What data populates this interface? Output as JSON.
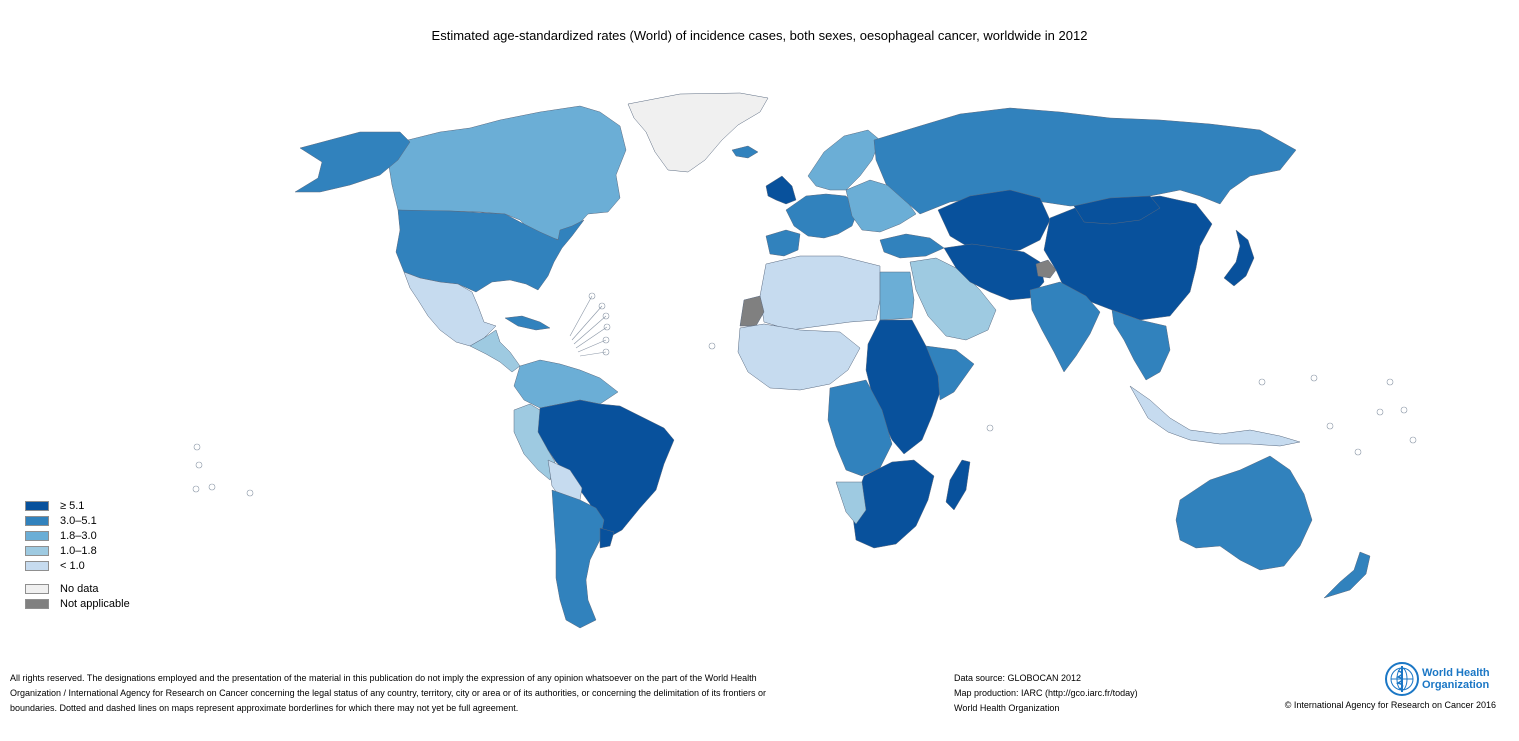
{
  "title": "Estimated age-standardized rates (World) of incidence cases, both sexes, oesophageal cancer, worldwide in 2012",
  "legend": {
    "items": [
      {
        "label": "≥ 5.1",
        "color": "#08519c"
      },
      {
        "label": "3.0–5.1",
        "color": "#3182bd"
      },
      {
        "label": "1.8–3.0",
        "color": "#6baed6"
      },
      {
        "label": "1.0–1.8",
        "color": "#9ecae1"
      },
      {
        "label": "< 1.0",
        "color": "#c6dbef"
      }
    ],
    "special": [
      {
        "label": "No data",
        "color": "#f0f0f0"
      },
      {
        "label": "Not applicable",
        "color": "#808080"
      }
    ]
  },
  "regions": [
    {
      "id": "greenland",
      "cls": "nodata"
    },
    {
      "id": "canada",
      "cls": "c2"
    },
    {
      "id": "alaska",
      "cls": "c1"
    },
    {
      "id": "usa",
      "cls": "c1"
    },
    {
      "id": "mexico",
      "cls": "c4"
    },
    {
      "id": "central-america",
      "cls": "c3"
    },
    {
      "id": "cuba",
      "cls": "c1"
    },
    {
      "id": "colombia-venezuela",
      "cls": "c2"
    },
    {
      "id": "peru-ecuador",
      "cls": "c3"
    },
    {
      "id": "brazil",
      "cls": "c0"
    },
    {
      "id": "bolivia",
      "cls": "c4"
    },
    {
      "id": "argentina-chile",
      "cls": "c1"
    },
    {
      "id": "uruguay",
      "cls": "c0"
    },
    {
      "id": "iceland",
      "cls": "c1"
    },
    {
      "id": "uk-ireland",
      "cls": "c0"
    },
    {
      "id": "scandinavia",
      "cls": "c2"
    },
    {
      "id": "western-europe",
      "cls": "c1"
    },
    {
      "id": "eastern-europe",
      "cls": "c2"
    },
    {
      "id": "iberia",
      "cls": "c1"
    },
    {
      "id": "russia",
      "cls": "c1"
    },
    {
      "id": "central-asia",
      "cls": "c0"
    },
    {
      "id": "china",
      "cls": "c0"
    },
    {
      "id": "mongolia",
      "cls": "c0"
    },
    {
      "id": "japan",
      "cls": "c0"
    },
    {
      "id": "turkey",
      "cls": "c1"
    },
    {
      "id": "middle-east",
      "cls": "c3"
    },
    {
      "id": "iran",
      "cls": "c0"
    },
    {
      "id": "india",
      "cls": "c1"
    },
    {
      "id": "kashmir",
      "cls": "na"
    },
    {
      "id": "southeast-asia",
      "cls": "c1"
    },
    {
      "id": "indonesia",
      "cls": "c4"
    },
    {
      "id": "australia",
      "cls": "c1"
    },
    {
      "id": "new-zealand",
      "cls": "c1"
    },
    {
      "id": "north-africa",
      "cls": "c4"
    },
    {
      "id": "egypt",
      "cls": "c2"
    },
    {
      "id": "western-sahara",
      "cls": "na"
    },
    {
      "id": "west-africa",
      "cls": "c4"
    },
    {
      "id": "sudan-east-africa",
      "cls": "c0"
    },
    {
      "id": "horn-of-africa",
      "cls": "c1"
    },
    {
      "id": "central-africa",
      "cls": "c1"
    },
    {
      "id": "southern-africa",
      "cls": "c0"
    },
    {
      "id": "namibia",
      "cls": "c3"
    },
    {
      "id": "madagascar",
      "cls": "c0"
    }
  ],
  "footer": {
    "disclaimer_1": "All rights reserved. The designations employed and the presentation of the material in this publication do not imply the expression of any opinion whatsoever on the part of the World Health",
    "disclaimer_2": "Organization / International Agency for Research on Cancer concerning the legal status of any country, territory, city or area or of its authorities, or concerning the delimitation of its frontiers or",
    "disclaimer_3": "boundaries. Dotted and dashed lines on maps represent approximate borderlines for which there may not yet be full agreement.",
    "data_source": "Data source: GLOBOCAN 2012",
    "map_production": "Map production: IARC (http://gco.iarc.fr/today)",
    "organization": "World Health Organization",
    "copyright": "© International Agency for Research on Cancer 2016"
  },
  "logo": {
    "line1": "World Health",
    "line2": "Organization"
  }
}
